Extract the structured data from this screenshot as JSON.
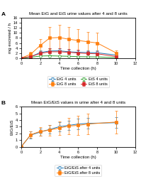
{
  "chart_data": [
    {
      "type": "line",
      "title": "Mean EtG and EtS urine values after 4 and 8 units",
      "x_label": "Time collection (h)",
      "y_label": "mg excreted / h",
      "annotations": [
        "A"
      ],
      "x": [
        0,
        1,
        2,
        3,
        4,
        5,
        6,
        7,
        8,
        10
      ],
      "xlim": [
        0,
        12
      ],
      "xticks": [
        0,
        2,
        4,
        6,
        8,
        10,
        12
      ],
      "ylim": [
        0,
        16
      ],
      "yticks": [
        0,
        2,
        4,
        6,
        8,
        10,
        12,
        14,
        16
      ],
      "legend": "upper center",
      "series": [
        {
          "name": "EtG 4 units",
          "marker": "circle",
          "line_style": "solid",
          "values": [
            0,
            0.5,
            2.2,
            2.8,
            2.9,
            2.5,
            2.3,
            2.2,
            2.1,
            1.2
          ],
          "errors": [
            0,
            0.3,
            0.7,
            1.0,
            1.0,
            0.9,
            0.8,
            0.8,
            0.8,
            0.6
          ]
        },
        {
          "name": "EtG 8 units",
          "marker": "square",
          "line_style": "solid",
          "values": [
            0,
            1.5,
            5.0,
            8.0,
            8.2,
            7.5,
            7.0,
            6.5,
            6.0,
            2.0
          ],
          "errors": [
            0,
            1.0,
            2.5,
            4.5,
            5.0,
            5.0,
            4.5,
            4.0,
            4.0,
            1.0
          ]
        },
        {
          "name": "EtS 4 units",
          "marker": "circle",
          "line_style": "solid",
          "values": [
            0,
            0.3,
            0.8,
            0.9,
            0.8,
            0.7,
            0.55,
            0.5,
            0.45,
            0.15
          ],
          "errors": [
            0,
            0.2,
            0.4,
            0.4,
            0.35,
            0.3,
            0.25,
            0.2,
            0.2,
            0.1
          ]
        },
        {
          "name": "EtS 8 units",
          "marker": "square",
          "line_style": "solid",
          "values": [
            0,
            0.6,
            1.8,
            2.5,
            2.5,
            2.3,
            2.0,
            1.8,
            1.7,
            0.6
          ],
          "errors": [
            0,
            0.5,
            1.0,
            1.5,
            1.5,
            1.4,
            1.2,
            1.0,
            1.0,
            0.3
          ]
        }
      ]
    },
    {
      "type": "line",
      "title": "Mean EtG/EtS values in urine after 4 and 8 units",
      "x_label": "Time collection (h)",
      "y_label": "EtG/EtS",
      "annotations": [
        "B"
      ],
      "x": [
        0,
        1,
        2,
        3,
        4,
        5,
        6,
        7,
        10
      ],
      "xlim": [
        0,
        12
      ],
      "xticks": [
        0,
        2,
        4,
        6,
        8,
        10,
        12
      ],
      "ylim": [
        0,
        6
      ],
      "yticks": [
        0,
        1,
        2,
        3,
        4,
        5,
        6
      ],
      "legend": "upper center",
      "series": [
        {
          "name": "EtG/EtS after 4 units",
          "marker": "circle",
          "line_style": "solid",
          "values": [
            0,
            1.75,
            2.2,
            2.6,
            3.0,
            3.2,
            3.4,
            3.5,
            3.6
          ],
          "errors": [
            0,
            0.5,
            0.5,
            0.6,
            0.7,
            0.7,
            0.8,
            0.8,
            0.8
          ]
        },
        {
          "name": "EtG/EtS after 8 units",
          "marker": "square",
          "line_style": "solid",
          "values": [
            0,
            1.8,
            2.3,
            2.5,
            2.8,
            3.1,
            3.2,
            3.4,
            3.7
          ],
          "errors": [
            0,
            0.5,
            0.6,
            0.8,
            1.0,
            1.2,
            1.4,
            1.5,
            1.7
          ]
        }
      ]
    }
  ]
}
